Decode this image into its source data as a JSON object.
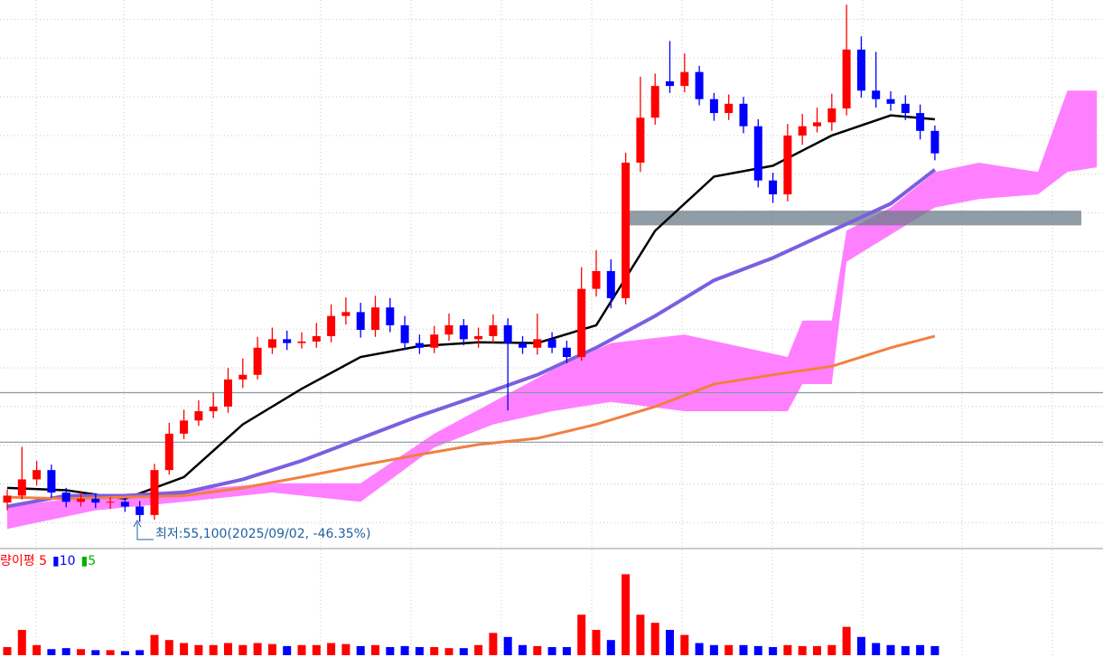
{
  "chart_data": {
    "type": "candlestick",
    "ylim": [
      51900,
      122500
    ],
    "yticks": [
      55000,
      60000,
      65000,
      70000,
      75000,
      80000,
      85000,
      90000,
      95000,
      100000,
      105000,
      110000,
      115000,
      120000
    ],
    "grid": true,
    "up_color": "#ff0000",
    "down_color": "#0000ff",
    "candles": {
      "open": [
        57600,
        58500,
        60600,
        61800,
        58900,
        57700,
        58100,
        57600,
        57700,
        57100,
        56000,
        61800,
        66500,
        68200,
        69400,
        70000,
        73500,
        74100,
        77600,
        78700,
        78200,
        78400,
        79100,
        81700,
        82200,
        79900,
        82800,
        80500,
        78200,
        77600,
        79300,
        80500,
        78700,
        79100,
        80500,
        78200,
        77600,
        78700,
        77600,
        76400,
        85200,
        87500,
        84000,
        101500,
        107300,
        112000,
        111400,
        113200,
        109700,
        107900,
        109100,
        106200,
        99200,
        97400,
        105000,
        106200,
        106700,
        108500,
        116100,
        110800,
        109700,
        109100,
        107900,
        105600
      ],
      "high": [
        59300,
        64800,
        63000,
        62500,
        59500,
        58900,
        58800,
        58300,
        58200,
        57800,
        62600,
        67900,
        69600,
        70800,
        71800,
        75000,
        76200,
        79000,
        80200,
        79800,
        79600,
        80800,
        83200,
        84100,
        83400,
        84300,
        84000,
        81700,
        79300,
        80400,
        82000,
        81300,
        80200,
        81900,
        81400,
        79100,
        82000,
        79600,
        78500,
        88000,
        90200,
        89000,
        102800,
        112600,
        113000,
        117200,
        115600,
        114000,
        110500,
        110300,
        110000,
        107100,
        100200,
        106500,
        107800,
        108600,
        110400,
        121900,
        117800,
        115800,
        110700,
        110200,
        109000,
        106300
      ],
      "low": [
        56600,
        58000,
        59800,
        58200,
        57000,
        57100,
        56900,
        56800,
        56400,
        55100,
        55400,
        61200,
        65800,
        67500,
        68500,
        69200,
        72400,
        73500,
        76800,
        77300,
        77500,
        77600,
        78300,
        80600,
        78900,
        79000,
        79600,
        77300,
        76800,
        76900,
        78500,
        77900,
        77600,
        78200,
        69500,
        76800,
        76700,
        76900,
        75600,
        75900,
        84200,
        82700,
        83200,
        100300,
        106400,
        110500,
        110600,
        108900,
        106900,
        107000,
        105300,
        98300,
        96300,
        96500,
        103800,
        105400,
        105600,
        107600,
        109900,
        108600,
        108200,
        107000,
        104500,
        101800
      ],
      "close": [
        58500,
        60600,
        61800,
        58900,
        57700,
        58100,
        57600,
        57700,
        57100,
        56000,
        61800,
        66500,
        68200,
        69400,
        70000,
        73500,
        74100,
        77600,
        78700,
        78200,
        78400,
        79100,
        81700,
        82200,
        79900,
        82800,
        80500,
        78200,
        77600,
        79300,
        80500,
        78700,
        79100,
        80500,
        78200,
        77600,
        78700,
        77600,
        76400,
        85200,
        87500,
        84000,
        101500,
        107300,
        111400,
        111400,
        113200,
        109700,
        107900,
        109100,
        106200,
        99200,
        97400,
        105000,
        106200,
        106700,
        108500,
        116100,
        110800,
        109700,
        109100,
        107900,
        105600,
        102700
      ]
    },
    "lines": [
      {
        "color": "#000000",
        "width": 2.5,
        "x": [
          0,
          4,
          8,
          12,
          16,
          20,
          24,
          28,
          32,
          36,
          40,
          44,
          48,
          52,
          56,
          60,
          63
        ],
        "values": [
          59500,
          59200,
          58100,
          60900,
          67700,
          72300,
          76400,
          77800,
          78300,
          78200,
          80500,
          92700,
          99700,
          101100,
          105000,
          107600,
          107100
        ]
      },
      {
        "color": "#7b5fe0",
        "width": 4,
        "x": [
          0,
          4,
          8,
          12,
          16,
          20,
          24,
          28,
          32,
          36,
          40,
          44,
          48,
          52,
          56,
          60,
          63
        ],
        "values": [
          57100,
          58500,
          58500,
          58900,
          60600,
          63000,
          65900,
          68800,
          71400,
          74100,
          77600,
          81700,
          86300,
          89200,
          92700,
          96200,
          100600
        ]
      },
      {
        "color": "#f08040",
        "width": 3,
        "x": [
          0,
          4,
          8,
          12,
          16,
          20,
          24,
          28,
          32,
          36,
          40,
          44,
          48,
          52,
          56,
          60,
          63
        ],
        "values": [
          58300,
          58100,
          58300,
          58500,
          59500,
          60900,
          62400,
          63800,
          65100,
          65900,
          67700,
          70000,
          72900,
          74100,
          75200,
          77600,
          79100
        ]
      }
    ],
    "cloud": {
      "color": "#ff80ff",
      "x": [
        0,
        6,
        12,
        18,
        24,
        29,
        33,
        37,
        41,
        46,
        53,
        54,
        56,
        57,
        60,
        63,
        66,
        70,
        72,
        74
      ],
      "upper": [
        57100,
        58500,
        59200,
        60100,
        60100,
        66500,
        70600,
        74700,
        78200,
        79300,
        76400,
        81100,
        81100,
        92700,
        95700,
        100300,
        101500,
        100300,
        110800,
        110800
      ],
      "lower": [
        54200,
        56600,
        57700,
        58900,
        57700,
        64700,
        67700,
        69400,
        70600,
        69400,
        69400,
        72900,
        72900,
        88700,
        92200,
        95700,
        96800,
        97400,
        100300,
        100900
      ]
    },
    "levels": [
      71800,
      65400
    ],
    "band": [
      93400,
      95300
    ],
    "annotation": "최저:55,100(2025/09/02, -46.35%)",
    "volume": {
      "ylim": [
        0,
        100
      ],
      "values": [
        8,
        25,
        10,
        6,
        7,
        6,
        5,
        5,
        4,
        5,
        20,
        15,
        12,
        10,
        10,
        12,
        10,
        12,
        11,
        9,
        10,
        10,
        12,
        11,
        9,
        10,
        8,
        9,
        8,
        8,
        7,
        7,
        10,
        22,
        18,
        10,
        9,
        8,
        8,
        40,
        25,
        15,
        80,
        40,
        32,
        25,
        20,
        12,
        10,
        10,
        10,
        9,
        8,
        10,
        9,
        9,
        10,
        28,
        18,
        12,
        10,
        9,
        10,
        9
      ],
      "legend": [
        {
          "text": "량이평 5",
          "color": "#ff0000"
        },
        {
          "text": "▮10",
          "color": "#0000ff"
        },
        {
          "text": "▮5",
          "color": "#00b000"
        }
      ]
    }
  }
}
